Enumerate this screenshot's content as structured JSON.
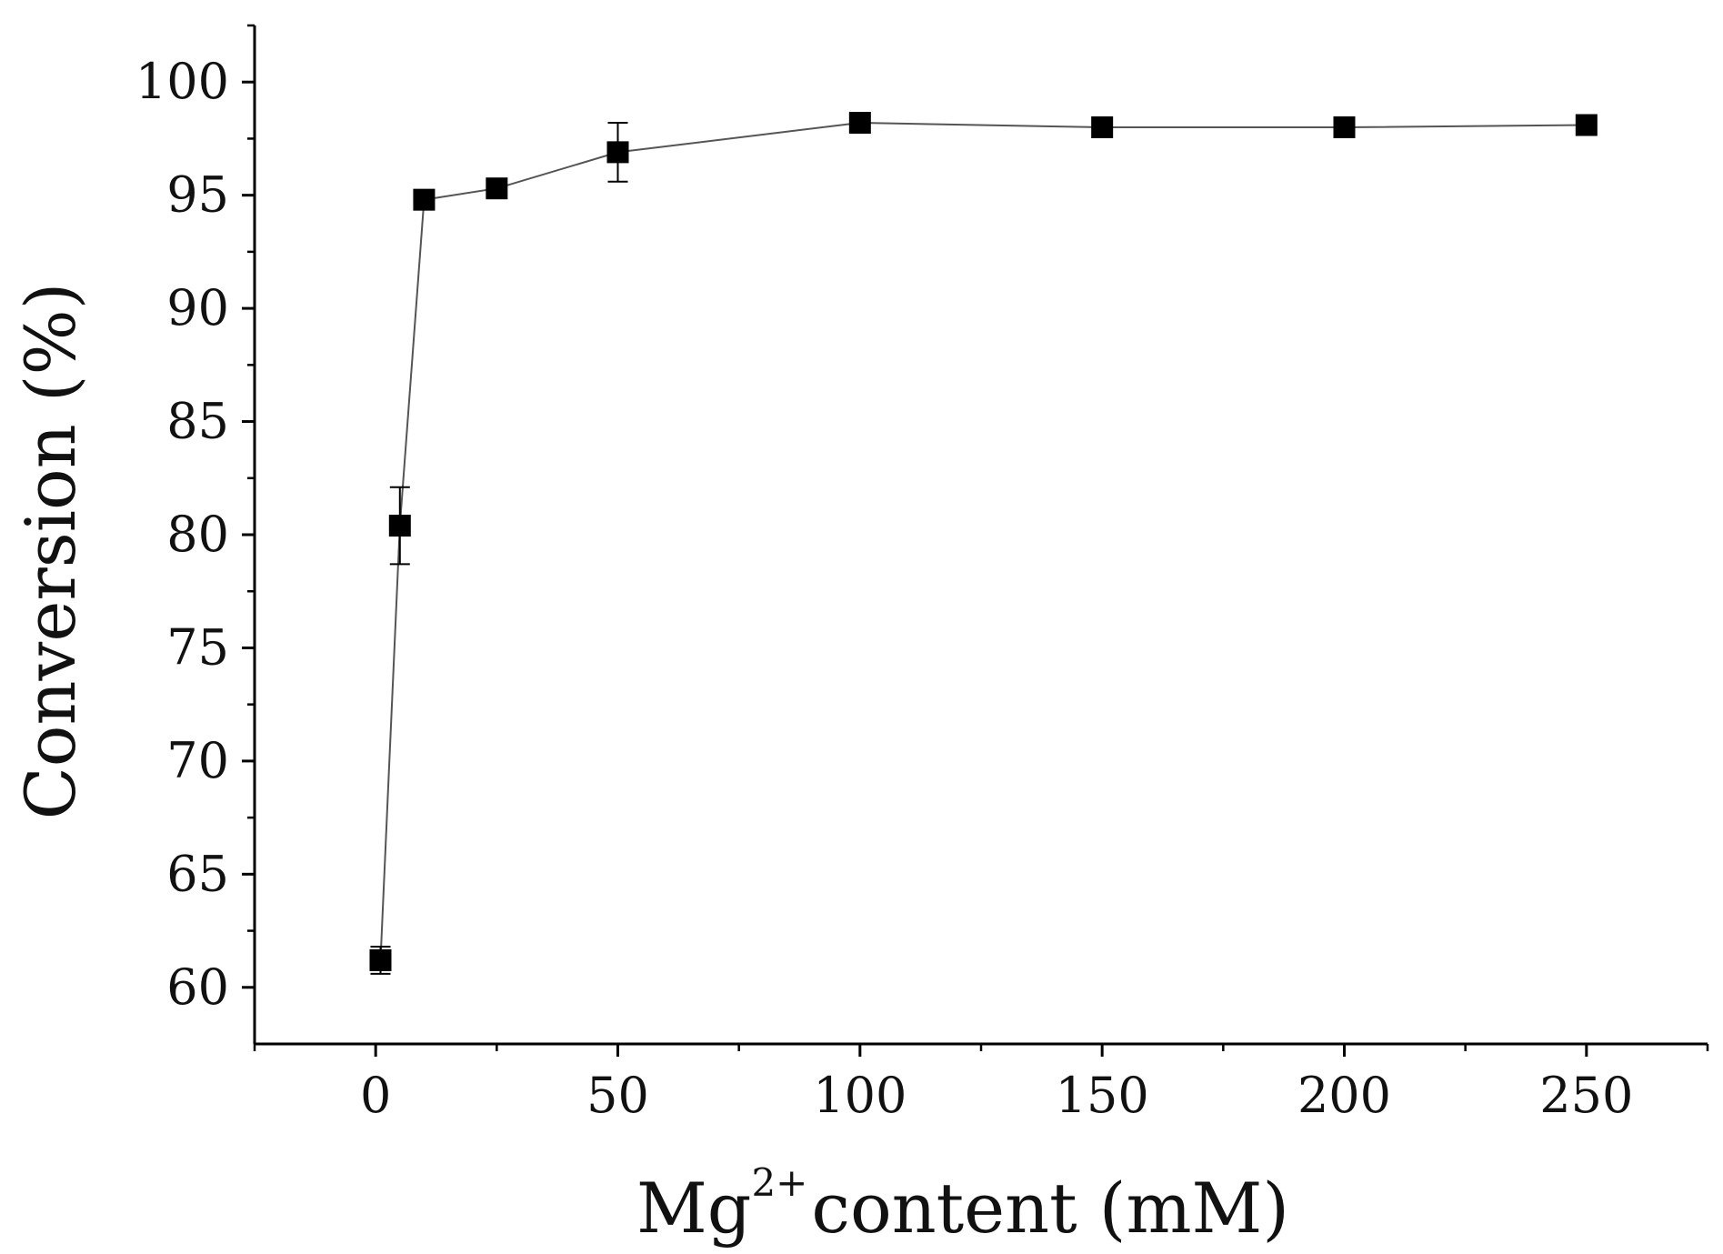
{
  "chart_data": {
    "type": "scatter",
    "title": "",
    "xlabel": {
      "base": "Mg",
      "superscript": "2+",
      "rest": "content (mM)"
    },
    "ylabel": "Conversion (%)",
    "xlim": [
      -25,
      275
    ],
    "ylim": [
      57.5,
      102.5
    ],
    "xticks": [
      0,
      50,
      100,
      150,
      200,
      250
    ],
    "xticks_minor": [
      -25,
      25,
      75,
      125,
      175,
      225,
      275
    ],
    "yticks": [
      60,
      65,
      70,
      75,
      80,
      85,
      90,
      95,
      100
    ],
    "yticks_minor": [
      62.5,
      67.5,
      72.5,
      77.5,
      82.5,
      87.5,
      92.5,
      97.5,
      102.5
    ],
    "grid": false,
    "legend": "none",
    "marker": "square",
    "line_color": "#555555",
    "marker_color": "#000000",
    "series": [
      {
        "x": [
          1,
          5,
          10,
          25,
          50,
          100,
          150,
          200,
          250
        ],
        "y": [
          61.2,
          80.4,
          94.8,
          95.3,
          96.9,
          98.2,
          98.0,
          98.0,
          98.1
        ],
        "error": [
          0.6,
          1.7,
          0.0,
          0.0,
          1.3,
          0.0,
          0.0,
          0.0,
          0.0
        ]
      }
    ]
  }
}
